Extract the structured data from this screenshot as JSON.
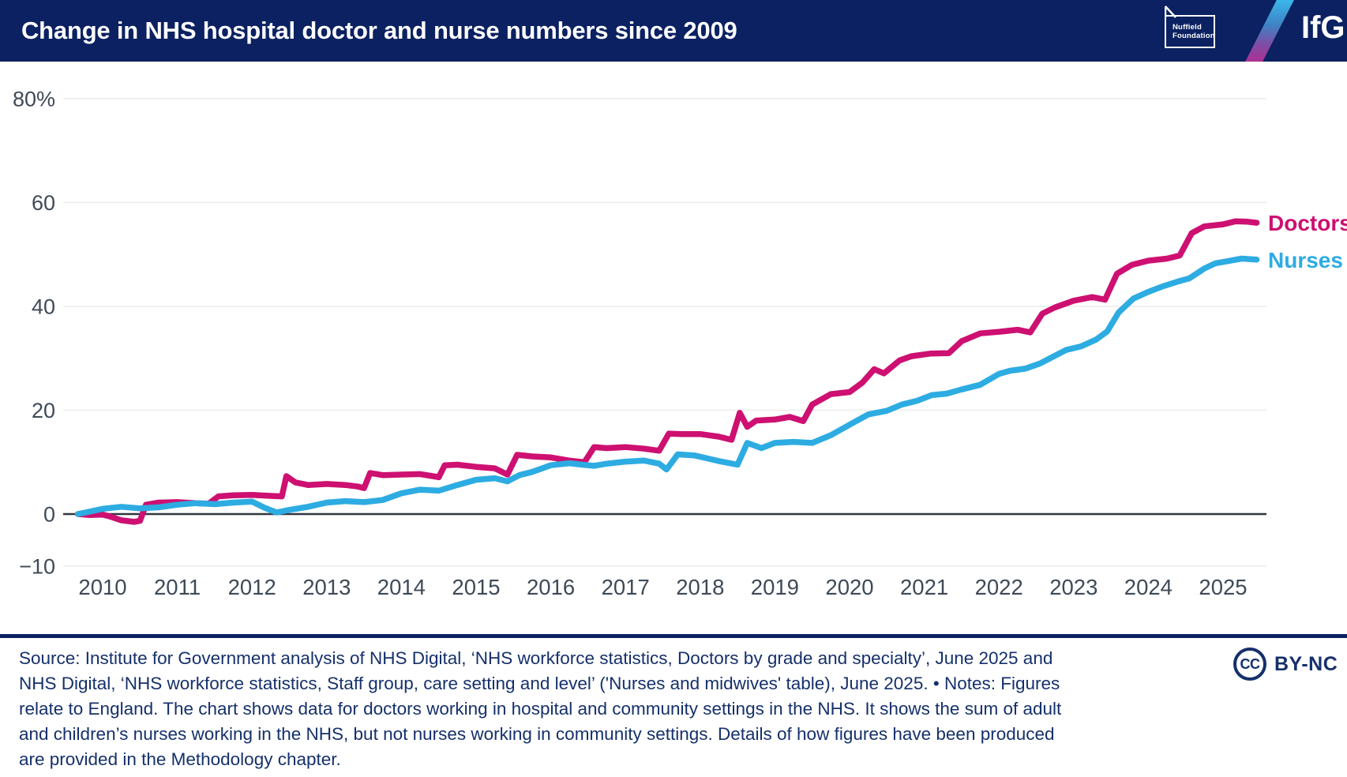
{
  "header": {
    "title": "Change in NHS hospital doctor and nurse numbers since 2009",
    "nuffield_logo": {
      "line1": "Nuffield",
      "line2": "Foundation"
    },
    "ifg_logo": "IfG"
  },
  "chart_data": {
    "type": "line",
    "title": "Change in NHS hospital doctor and nurse numbers since 2009",
    "unit": "percent change since 2009",
    "grid": true,
    "legend_position": "right-end-labels",
    "x_axis": {
      "ticks": [
        2010,
        2011,
        2012,
        2013,
        2014,
        2015,
        2016,
        2017,
        2018,
        2019,
        2020,
        2021,
        2022,
        2023,
        2024,
        2025
      ],
      "data_range": [
        2009.67,
        2025.45
      ]
    },
    "y_axis": {
      "range": [
        -10,
        80
      ],
      "ticks": [
        {
          "label": "80%",
          "value": 80
        },
        {
          "label": "60",
          "value": 60
        },
        {
          "label": "40",
          "value": 40
        },
        {
          "label": "20",
          "value": 20
        },
        {
          "label": "0",
          "value": 0
        },
        {
          "label": "−10",
          "value": -10
        }
      ]
    },
    "series": [
      {
        "name": "Doctors",
        "color": "#cd1071",
        "points": [
          [
            2009.67,
            0.0
          ],
          [
            2009.83,
            -0.2
          ],
          [
            2010.0,
            -0.1
          ],
          [
            2010.08,
            -0.4
          ],
          [
            2010.25,
            -1.2
          ],
          [
            2010.42,
            -1.5
          ],
          [
            2010.5,
            -1.3
          ],
          [
            2010.58,
            1.8
          ],
          [
            2010.75,
            2.2
          ],
          [
            2011.0,
            2.3
          ],
          [
            2011.25,
            2.1
          ],
          [
            2011.42,
            2.0
          ],
          [
            2011.55,
            3.4
          ],
          [
            2011.75,
            3.6
          ],
          [
            2012.0,
            3.7
          ],
          [
            2012.25,
            3.5
          ],
          [
            2012.4,
            3.4
          ],
          [
            2012.46,
            7.3
          ],
          [
            2012.58,
            6.1
          ],
          [
            2012.75,
            5.6
          ],
          [
            2013.0,
            5.8
          ],
          [
            2013.25,
            5.6
          ],
          [
            2013.42,
            5.3
          ],
          [
            2013.5,
            5.0
          ],
          [
            2013.58,
            7.9
          ],
          [
            2013.75,
            7.5
          ],
          [
            2014.0,
            7.6
          ],
          [
            2014.25,
            7.7
          ],
          [
            2014.42,
            7.3
          ],
          [
            2014.5,
            7.1
          ],
          [
            2014.58,
            9.4
          ],
          [
            2014.75,
            9.5
          ],
          [
            2015.0,
            9.1
          ],
          [
            2015.25,
            8.8
          ],
          [
            2015.42,
            7.6
          ],
          [
            2015.55,
            11.4
          ],
          [
            2015.75,
            11.1
          ],
          [
            2016.0,
            10.9
          ],
          [
            2016.25,
            10.3
          ],
          [
            2016.45,
            10.0
          ],
          [
            2016.58,
            12.9
          ],
          [
            2016.75,
            12.7
          ],
          [
            2017.0,
            12.9
          ],
          [
            2017.25,
            12.6
          ],
          [
            2017.45,
            12.2
          ],
          [
            2017.58,
            15.5
          ],
          [
            2017.75,
            15.4
          ],
          [
            2018.0,
            15.4
          ],
          [
            2018.25,
            14.9
          ],
          [
            2018.42,
            14.3
          ],
          [
            2018.53,
            19.5
          ],
          [
            2018.63,
            16.8
          ],
          [
            2018.75,
            18.0
          ],
          [
            2019.0,
            18.2
          ],
          [
            2019.2,
            18.7
          ],
          [
            2019.38,
            17.9
          ],
          [
            2019.5,
            21.1
          ],
          [
            2019.75,
            23.1
          ],
          [
            2020.0,
            23.5
          ],
          [
            2020.17,
            25.3
          ],
          [
            2020.33,
            27.9
          ],
          [
            2020.46,
            27.1
          ],
          [
            2020.67,
            29.6
          ],
          [
            2020.83,
            30.4
          ],
          [
            2021.08,
            30.9
          ],
          [
            2021.33,
            31.0
          ],
          [
            2021.5,
            33.3
          ],
          [
            2021.75,
            34.8
          ],
          [
            2022.0,
            35.1
          ],
          [
            2022.25,
            35.5
          ],
          [
            2022.42,
            35.0
          ],
          [
            2022.58,
            38.6
          ],
          [
            2022.75,
            39.8
          ],
          [
            2023.0,
            41.1
          ],
          [
            2023.25,
            41.8
          ],
          [
            2023.42,
            41.3
          ],
          [
            2023.58,
            46.3
          ],
          [
            2023.78,
            48.0
          ],
          [
            2024.0,
            48.8
          ],
          [
            2024.25,
            49.2
          ],
          [
            2024.42,
            49.8
          ],
          [
            2024.58,
            54.1
          ],
          [
            2024.75,
            55.4
          ],
          [
            2025.0,
            55.8
          ],
          [
            2025.17,
            56.4
          ],
          [
            2025.33,
            56.3
          ],
          [
            2025.45,
            56.1
          ]
        ]
      },
      {
        "name": "Nurses",
        "color": "#2dace2",
        "points": [
          [
            2009.67,
            0.0
          ],
          [
            2010.0,
            1.0
          ],
          [
            2010.25,
            1.4
          ],
          [
            2010.5,
            1.1
          ],
          [
            2010.75,
            1.3
          ],
          [
            2011.0,
            1.8
          ],
          [
            2011.25,
            2.1
          ],
          [
            2011.5,
            1.9
          ],
          [
            2011.75,
            2.2
          ],
          [
            2012.0,
            2.4
          ],
          [
            2012.17,
            1.2
          ],
          [
            2012.33,
            0.3
          ],
          [
            2012.5,
            0.8
          ],
          [
            2012.75,
            1.4
          ],
          [
            2013.0,
            2.2
          ],
          [
            2013.25,
            2.5
          ],
          [
            2013.5,
            2.3
          ],
          [
            2013.75,
            2.7
          ],
          [
            2014.0,
            4.0
          ],
          [
            2014.25,
            4.7
          ],
          [
            2014.5,
            4.5
          ],
          [
            2014.75,
            5.6
          ],
          [
            2015.0,
            6.6
          ],
          [
            2015.25,
            6.9
          ],
          [
            2015.42,
            6.3
          ],
          [
            2015.58,
            7.5
          ],
          [
            2015.75,
            8.1
          ],
          [
            2016.0,
            9.4
          ],
          [
            2016.25,
            9.8
          ],
          [
            2016.42,
            9.5
          ],
          [
            2016.58,
            9.3
          ],
          [
            2016.75,
            9.7
          ],
          [
            2017.0,
            10.1
          ],
          [
            2017.25,
            10.3
          ],
          [
            2017.45,
            9.7
          ],
          [
            2017.55,
            8.6
          ],
          [
            2017.7,
            11.5
          ],
          [
            2017.92,
            11.3
          ],
          [
            2018.25,
            10.2
          ],
          [
            2018.5,
            9.5
          ],
          [
            2018.63,
            13.7
          ],
          [
            2018.82,
            12.7
          ],
          [
            2019.0,
            13.7
          ],
          [
            2019.25,
            13.9
          ],
          [
            2019.5,
            13.7
          ],
          [
            2019.75,
            15.2
          ],
          [
            2020.0,
            17.2
          ],
          [
            2020.25,
            19.2
          ],
          [
            2020.5,
            19.9
          ],
          [
            2020.7,
            21.1
          ],
          [
            2020.9,
            21.8
          ],
          [
            2021.1,
            22.9
          ],
          [
            2021.3,
            23.2
          ],
          [
            2021.5,
            24.0
          ],
          [
            2021.75,
            24.9
          ],
          [
            2022.0,
            27.0
          ],
          [
            2022.15,
            27.6
          ],
          [
            2022.35,
            28.0
          ],
          [
            2022.55,
            29.0
          ],
          [
            2022.75,
            30.5
          ],
          [
            2022.9,
            31.6
          ],
          [
            2023.1,
            32.3
          ],
          [
            2023.3,
            33.6
          ],
          [
            2023.45,
            35.2
          ],
          [
            2023.6,
            38.8
          ],
          [
            2023.8,
            41.5
          ],
          [
            2024.0,
            42.8
          ],
          [
            2024.2,
            43.9
          ],
          [
            2024.4,
            44.8
          ],
          [
            2024.55,
            45.4
          ],
          [
            2024.75,
            47.3
          ],
          [
            2024.9,
            48.3
          ],
          [
            2025.1,
            48.8
          ],
          [
            2025.25,
            49.2
          ],
          [
            2025.45,
            49.0
          ]
        ]
      }
    ]
  },
  "footer": {
    "source_lines": [
      "Source: Institute for Government analysis of NHS Digital, ‘NHS workforce statistics, Doctors by grade and specialty’, June 2025 and",
      "NHS Digital, ‘NHS workforce statistics, Staff group, care setting and level’ ('Nurses and midwives' table), June 2025. • Notes: Figures",
      "relate to England. The chart shows data for doctors working in hospital and community settings in the NHS. It shows the sum of adult",
      "and children’s nurses working in the NHS, but not nurses working in community settings. Details of how figures have been produced",
      "are provided in the Methodology chapter."
    ],
    "license": {
      "cc": "CC",
      "label": "BY-NC"
    }
  }
}
